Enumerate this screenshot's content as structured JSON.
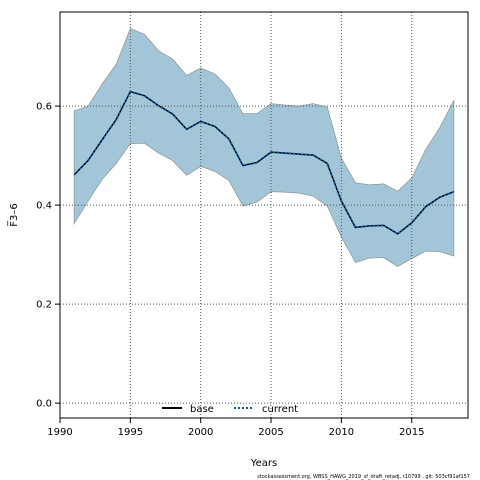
{
  "chart_data": {
    "type": "line",
    "xlabel": "Years",
    "ylabel": "F̅3–6",
    "xlim": [
      1990,
      2019
    ],
    "ylim": [
      -0.03,
      0.79
    ],
    "x_ticks": [
      1990,
      1995,
      2000,
      2005,
      2010,
      2015
    ],
    "y_ticks": [
      0.0,
      0.2,
      0.4,
      0.6
    ],
    "y_tick_labels": [
      "0.0",
      "0.2",
      "0.4",
      "0.6"
    ],
    "grid": true,
    "legend_position": "bottom-center",
    "x": [
      1991,
      1992,
      1993,
      1994,
      1995,
      1996,
      1997,
      1998,
      1999,
      2000,
      2001,
      2002,
      2003,
      2004,
      2005,
      2006,
      2007,
      2008,
      2009,
      2010,
      2011,
      2012,
      2013,
      2014,
      2015,
      2016,
      2017,
      2018
    ],
    "band": {
      "color": "#a3c5d8",
      "upper": [
        0.59,
        0.6,
        0.645,
        0.685,
        0.757,
        0.745,
        0.712,
        0.695,
        0.662,
        0.677,
        0.665,
        0.637,
        0.585,
        0.585,
        0.605,
        0.602,
        0.6,
        0.605,
        0.598,
        0.495,
        0.445,
        0.441,
        0.443,
        0.428,
        0.455,
        0.513,
        0.557,
        0.612
      ],
      "lower": [
        0.362,
        0.408,
        0.452,
        0.484,
        0.524,
        0.525,
        0.505,
        0.49,
        0.46,
        0.478,
        0.468,
        0.45,
        0.398,
        0.406,
        0.427,
        0.426,
        0.424,
        0.418,
        0.398,
        0.335,
        0.284,
        0.293,
        0.294,
        0.276,
        0.292,
        0.307,
        0.306,
        0.297
      ]
    },
    "series": [
      {
        "name": "base",
        "color": "#000000",
        "style": "solid",
        "values": [
          0.461,
          0.49,
          0.532,
          0.573,
          0.629,
          0.621,
          0.601,
          0.584,
          0.553,
          0.569,
          0.559,
          0.534,
          0.48,
          0.486,
          0.507,
          0.505,
          0.503,
          0.501,
          0.484,
          0.408,
          0.355,
          0.358,
          0.359,
          0.342,
          0.364,
          0.397,
          0.416,
          0.427
        ]
      },
      {
        "name": "current",
        "color": "#0a58a0",
        "style": "dotted",
        "values": [
          0.461,
          0.49,
          0.532,
          0.573,
          0.629,
          0.621,
          0.601,
          0.584,
          0.553,
          0.569,
          0.559,
          0.534,
          0.48,
          0.486,
          0.507,
          0.505,
          0.503,
          0.501,
          0.484,
          0.408,
          0.355,
          0.358,
          0.359,
          0.342,
          0.364,
          0.397,
          0.416,
          0.427
        ]
      }
    ],
    "footnote": "stockassessment.org, WBSS_HAWG_2019_sf_draft_retadj, r10799 , git: 503cf91af157"
  }
}
